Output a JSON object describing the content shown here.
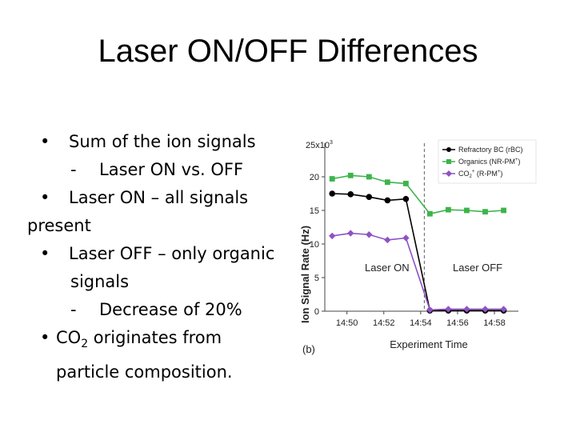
{
  "slide": {
    "title": "Laser ON/OFF Differences",
    "bullets": {
      "b1": "Sum of the ion signals",
      "b1_sub_dash": "-",
      "b1_sub": "Laser ON vs. OFF",
      "b2_line1": "Laser ON – all signals",
      "b2_line2": "present",
      "b3_line1": "Laser OFF – only organic",
      "b3_line2": "signals",
      "b3_sub_dash": "-",
      "b3_sub": "Decrease of 20%",
      "b4_co": "CO",
      "b4_sub2": "2",
      "b4_rest": " originates from",
      "b4_line2": "particle composition.",
      "bullet_char": "•"
    }
  },
  "chart_data": {
    "type": "line",
    "panel_label": "(b)",
    "ylabel": "Ion Signal Rate (Hz)",
    "xlabel": "Experiment Time",
    "y_exponent_label": "25x10",
    "y_exponent_power": "3",
    "yticks": [
      "0",
      "5",
      "10",
      "15",
      "20"
    ],
    "xticks": [
      "14:50",
      "14:52",
      "14:54",
      "14:56",
      "14:58"
    ],
    "ylim": [
      0,
      25
    ],
    "xlim_minutes": [
      48.8,
      59.3
    ],
    "xtick_minutes": [
      50,
      52,
      54,
      56,
      58
    ],
    "laser_switch_minute": 54.2,
    "annotations": [
      "Laser ON",
      "Laser OFF"
    ],
    "legend_position": "top-right",
    "series": [
      {
        "name": "Refractory BC (rBC)",
        "color": "#000000",
        "marker": "circle",
        "x": [
          49.2,
          50.2,
          51.2,
          52.2,
          53.2,
          54.5,
          55.5,
          56.5,
          57.5,
          58.5
        ],
        "y": [
          17.5,
          17.4,
          17.0,
          16.5,
          16.7,
          0.1,
          0.1,
          0.1,
          0.1,
          0.1
        ]
      },
      {
        "name": "Organics (NR-PM",
        "name_sup": "+",
        "name_tail": ")",
        "color": "#3cb44b",
        "marker": "square",
        "x": [
          49.2,
          50.2,
          51.2,
          52.2,
          53.2,
          54.5,
          55.5,
          56.5,
          57.5,
          58.5
        ],
        "y": [
          19.7,
          20.2,
          20.0,
          19.2,
          19.0,
          14.5,
          15.1,
          15.0,
          14.8,
          15.0
        ]
      },
      {
        "name": "CO",
        "name_sub": "2",
        "name_sup": "+",
        "name_tail": " (R-PM",
        "name_tail_sup": "+",
        "name_end": ")",
        "color": "#8e52c4",
        "marker": "diamond",
        "x": [
          49.2,
          50.2,
          51.2,
          52.2,
          53.2,
          54.5,
          55.5,
          56.5,
          57.5,
          58.5
        ],
        "y": [
          11.2,
          11.6,
          11.4,
          10.6,
          10.9,
          0.2,
          0.3,
          0.3,
          0.3,
          0.3
        ]
      }
    ]
  }
}
